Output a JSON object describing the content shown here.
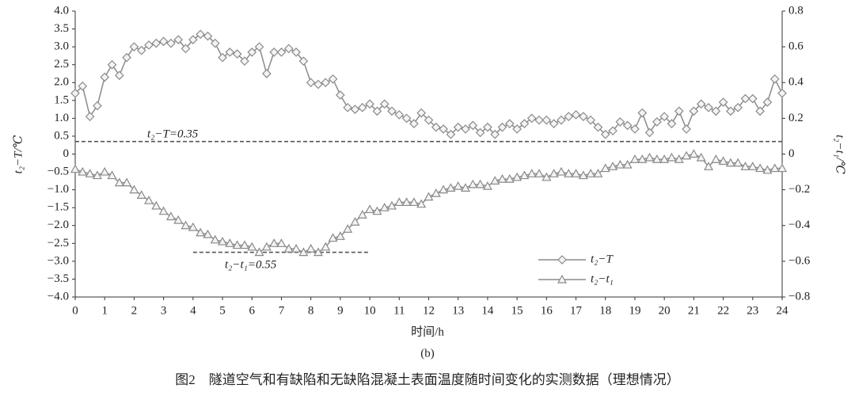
{
  "chart_data": {
    "type": "line",
    "x_label": "时间/h",
    "y_label": "t₂−T/℃",
    "y2_label": "t₂−t₁/℃",
    "panel_label": "(b)",
    "caption": "图2　隧道空气和有缺陷和无缺陷混凝土表面温度随时间变化的实测数据（理想情况）",
    "annotations": [
      "t₂−T=0.35",
      "t₂−t₁=0.55"
    ],
    "reference_lines": [
      {
        "axis": "y",
        "value": 0.35
      },
      {
        "axis": "y2",
        "value": -0.55,
        "x_range": [
          4,
          10
        ]
      }
    ],
    "xlim": [
      0,
      24
    ],
    "xticks": [
      0,
      1,
      2,
      3,
      4,
      5,
      6,
      7,
      8,
      9,
      10,
      11,
      12,
      13,
      14,
      15,
      16,
      17,
      18,
      19,
      20,
      21,
      22,
      23,
      24
    ],
    "ylim": [
      -4,
      4
    ],
    "yticks": [
      {
        "value": 4,
        "label": "4.0"
      },
      3.5,
      {
        "value": 3,
        "label": "3.0"
      },
      2.5,
      {
        "value": 2,
        "label": "2.0"
      },
      1.5,
      {
        "value": 1,
        "label": "1.0"
      },
      0.5,
      0,
      {
        "value": -0.5,
        "label": "−0.5"
      },
      {
        "value": -1,
        "label": "−1.0"
      },
      {
        "value": -1.5,
        "label": "−1.5"
      },
      {
        "value": -2,
        "label": "−2.0"
      },
      {
        "value": -2.5,
        "label": "−2.5"
      },
      {
        "value": -3,
        "label": "−3.0"
      },
      {
        "value": -3.5,
        "label": "−3.5"
      },
      {
        "value": -4,
        "label": "−4.0"
      }
    ],
    "y2lim": [
      -0.8,
      0.8
    ],
    "y2ticks": [
      0.8,
      0.6,
      0.4,
      0.2,
      0,
      {
        "value": -0.2,
        "label": "−0.2"
      },
      {
        "value": -0.4,
        "label": "−0.4"
      },
      {
        "value": -0.6,
        "label": "−0.6"
      },
      {
        "value": -0.8,
        "label": "−0.8"
      }
    ],
    "legend": "lower right",
    "x": [
      0,
      0.25,
      0.5,
      0.75,
      1,
      1.25,
      1.5,
      1.75,
      2,
      2.25,
      2.5,
      2.75,
      3,
      3.25,
      3.5,
      3.75,
      4,
      4.25,
      4.5,
      4.75,
      5,
      5.25,
      5.5,
      5.75,
      6,
      6.25,
      6.5,
      6.75,
      7,
      7.25,
      7.5,
      7.75,
      8,
      8.25,
      8.5,
      8.75,
      9,
      9.25,
      9.5,
      9.75,
      10,
      10.25,
      10.5,
      10.75,
      11,
      11.25,
      11.5,
      11.75,
      12,
      12.25,
      12.5,
      12.75,
      13,
      13.25,
      13.5,
      13.75,
      14,
      14.25,
      14.5,
      14.75,
      15,
      15.25,
      15.5,
      15.75,
      16,
      16.25,
      16.5,
      16.75,
      17,
      17.25,
      17.5,
      17.75,
      18,
      18.25,
      18.5,
      18.75,
      19,
      19.25,
      19.5,
      19.75,
      20,
      20.25,
      20.5,
      20.75,
      21,
      21.25,
      21.5,
      21.75,
      22,
      22.25,
      22.5,
      22.75,
      23,
      23.25,
      23.5,
      23.75,
      24
    ],
    "series": [
      {
        "name": "t₂−T",
        "color": "#8a8a8a",
        "marker": "diamond",
        "axis": "y",
        "values": [
          1.7,
          1.9,
          1.05,
          1.35,
          2.15,
          2.5,
          2.2,
          2.7,
          3.0,
          2.9,
          3.05,
          3.1,
          3.15,
          3.1,
          3.2,
          2.95,
          3.2,
          3.35,
          3.3,
          3.1,
          2.7,
          2.85,
          2.8,
          2.6,
          2.85,
          3.0,
          2.25,
          2.85,
          2.85,
          2.95,
          2.85,
          2.6,
          2.0,
          1.95,
          2.0,
          2.1,
          1.65,
          1.3,
          1.25,
          1.3,
          1.4,
          1.2,
          1.4,
          1.2,
          1.1,
          1.0,
          0.85,
          1.15,
          0.95,
          0.75,
          0.7,
          0.55,
          0.75,
          0.7,
          0.8,
          0.6,
          0.75,
          0.55,
          0.75,
          0.85,
          0.7,
          0.85,
          1.0,
          0.95,
          0.95,
          0.85,
          0.95,
          1.05,
          1.1,
          1.05,
          0.95,
          0.75,
          0.55,
          0.65,
          0.9,
          0.8,
          0.7,
          1.15,
          0.6,
          0.9,
          1.05,
          0.85,
          1.2,
          0.7,
          1.2,
          1.4,
          1.3,
          1.2,
          1.45,
          1.2,
          1.3,
          1.55,
          1.55,
          1.2,
          1.45,
          2.1,
          1.7
        ]
      },
      {
        "name": "t₂−t₁",
        "color": "#8a8a8a",
        "marker": "triangle",
        "axis": "y2",
        "values": [
          -0.085,
          -0.1,
          -0.11,
          -0.12,
          -0.1,
          -0.12,
          -0.16,
          -0.16,
          -0.2,
          -0.23,
          -0.26,
          -0.29,
          -0.32,
          -0.35,
          -0.37,
          -0.4,
          -0.41,
          -0.44,
          -0.45,
          -0.48,
          -0.49,
          -0.5,
          -0.51,
          -0.51,
          -0.52,
          -0.55,
          -0.52,
          -0.5,
          -0.5,
          -0.53,
          -0.53,
          -0.55,
          -0.53,
          -0.55,
          -0.52,
          -0.47,
          -0.46,
          -0.42,
          -0.38,
          -0.34,
          -0.31,
          -0.32,
          -0.3,
          -0.29,
          -0.27,
          -0.27,
          -0.27,
          -0.28,
          -0.24,
          -0.22,
          -0.2,
          -0.19,
          -0.18,
          -0.19,
          -0.17,
          -0.17,
          -0.18,
          -0.15,
          -0.14,
          -0.14,
          -0.13,
          -0.12,
          -0.11,
          -0.11,
          -0.13,
          -0.11,
          -0.1,
          -0.11,
          -0.11,
          -0.12,
          -0.11,
          -0.11,
          -0.08,
          -0.07,
          -0.06,
          -0.06,
          -0.03,
          -0.03,
          -0.02,
          -0.03,
          -0.03,
          -0.02,
          -0.03,
          -0.01,
          0.0,
          -0.02,
          -0.07,
          -0.03,
          -0.04,
          -0.05,
          -0.05,
          -0.07,
          -0.07,
          -0.08,
          -0.09,
          -0.08,
          -0.08
        ]
      }
    ]
  }
}
